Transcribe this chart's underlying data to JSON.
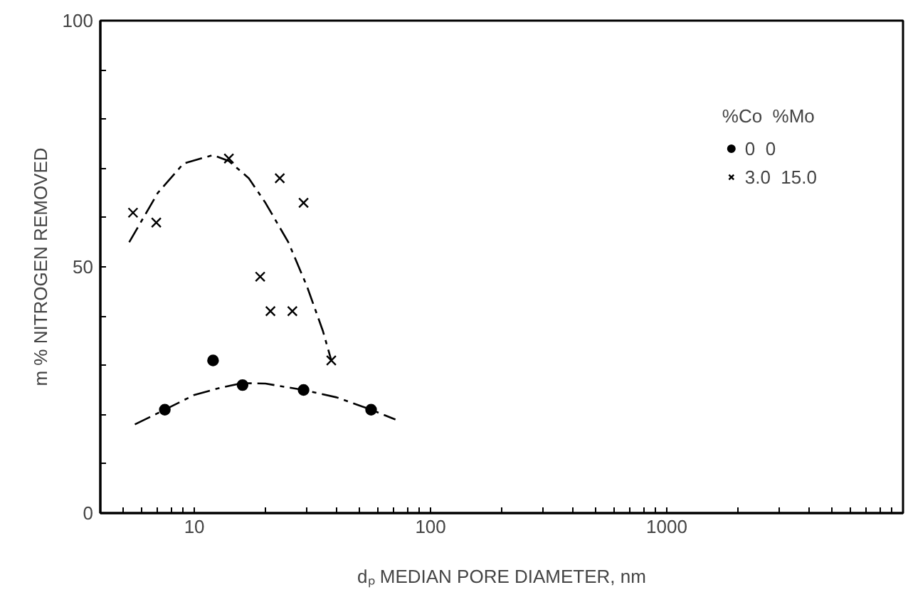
{
  "chart_data": {
    "type": "scatter",
    "xlabel": "dₚ MEDIAN PORE DIAMETER, nm",
    "ylabel": "m % NITROGEN REMOVED",
    "legend_title": "%Co  %Mo",
    "legend": "top right",
    "log": "x",
    "grid": false,
    "xlim": [
      4,
      10000
    ],
    "ylim": [
      0,
      100
    ],
    "xticks": [
      {
        "value": 4,
        "label": null
      },
      {
        "value": 5,
        "label": null
      },
      {
        "value": 6,
        "label": null
      },
      {
        "value": 7,
        "label": null
      },
      {
        "value": 8,
        "label": null
      },
      {
        "value": 9,
        "label": null
      },
      10,
      {
        "value": 20,
        "label": null
      },
      {
        "value": 30,
        "label": null
      },
      {
        "value": 40,
        "label": null
      },
      {
        "value": 50,
        "label": null
      },
      {
        "value": 60,
        "label": null
      },
      {
        "value": 70,
        "label": null
      },
      {
        "value": 80,
        "label": null
      },
      {
        "value": 90,
        "label": null
      },
      100,
      {
        "value": 200,
        "label": null
      },
      {
        "value": 300,
        "label": null
      },
      {
        "value": 400,
        "label": null
      },
      {
        "value": 500,
        "label": null
      },
      {
        "value": 600,
        "label": null
      },
      {
        "value": 700,
        "label": null
      },
      {
        "value": 800,
        "label": null
      },
      {
        "value": 900,
        "label": null
      },
      1000,
      {
        "value": 2000,
        "label": null
      },
      {
        "value": 3000,
        "label": null
      },
      {
        "value": 4000,
        "label": null
      },
      {
        "value": 5000,
        "label": null
      },
      {
        "value": 6000,
        "label": null
      },
      {
        "value": 7000,
        "label": null
      },
      {
        "value": 8000,
        "label": null
      },
      {
        "value": 9000,
        "label": null
      }
    ],
    "yticks": [
      0,
      {
        "value": 10,
        "label": null
      },
      {
        "value": 20,
        "label": null
      },
      {
        "value": 30,
        "label": null
      },
      {
        "value": 40,
        "label": null
      },
      50,
      {
        "value": 60,
        "label": null
      },
      {
        "value": 70,
        "label": null
      },
      {
        "value": 80,
        "label": null
      },
      {
        "value": 90,
        "label": null
      },
      100
    ],
    "series": [
      {
        "name": "0  0",
        "marker": "circle",
        "color": "#000000",
        "x": [
          7.5,
          12,
          16,
          29,
          56
        ],
        "values": [
          21,
          31,
          26,
          25,
          21
        ]
      },
      {
        "name": "3.0  15.0",
        "marker": "cross",
        "color": "#000000",
        "x": [
          5.5,
          6.9,
          14,
          23,
          29,
          19,
          21,
          26,
          38
        ],
        "values": [
          61,
          59,
          72,
          68,
          63,
          48,
          41,
          41,
          31
        ]
      },
      {
        "type": "line",
        "line_style": "dashed",
        "color": "#000000",
        "x": [
          5.6,
          7.5,
          10,
          13,
          16,
          20,
          29,
          40,
          56,
          71
        ],
        "values": [
          18,
          21,
          24,
          25.5,
          26.4,
          26.3,
          25,
          23.5,
          21,
          19
        ]
      },
      {
        "type": "line",
        "line_style": "dashed",
        "color": "#000000",
        "x": [
          5.3,
          7,
          9,
          12,
          14,
          17,
          20,
          25,
          30,
          35,
          38
        ],
        "values": [
          55,
          65,
          71,
          72.7,
          71.5,
          68,
          63,
          55,
          46,
          37,
          31
        ]
      }
    ]
  }
}
